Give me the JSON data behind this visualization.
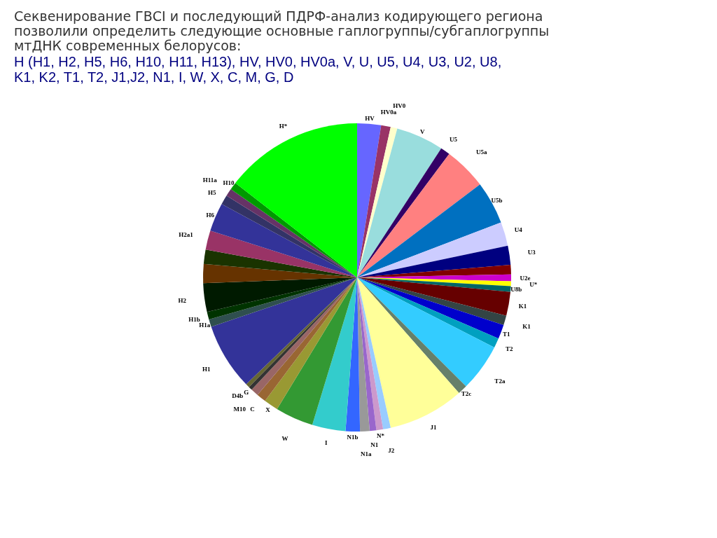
{
  "chart_data": {
    "type": "pie",
    "title": "Секвенирование ГВСI и последующий ПДРФ-анализ кодирующего региона позволили определить следующие основные гаплогруппы/субгаплогруппы мтДНК современных белорусов:",
    "subtitle": "H (H1, H2, H5, H6, H10, H11, H13), HV, HV0, HV0a, V, U, U5, U4, U3, U2, U8, K1, K2, T1, T2, J1,J2, N1, I, W, X, C, M, G, D",
    "categories": [
      "HV",
      "HV0a",
      "HV0",
      "V",
      "U5",
      "U5a",
      "U5b",
      "U4",
      "U3",
      null,
      "U2e",
      "U*",
      "U8b",
      "K1",
      "K1",
      "T1",
      "T2",
      "T2a",
      "T2c",
      "J1",
      "J2",
      "N*",
      "N1",
      "N1a",
      "N1b",
      "I",
      "W",
      "X",
      "C",
      "M10",
      "G",
      "D4b",
      "H1",
      "H1a",
      "H1b",
      "H2",
      null,
      null,
      "H2a1",
      "H6",
      "H5",
      "H11a",
      "H10",
      "H*"
    ],
    "values": [
      2.5,
      1,
      0.7,
      5,
      1,
      4.5,
      4.5,
      2.5,
      2,
      1,
      0.7,
      0.5,
      0.6,
      2.5,
      1,
      1.5,
      1,
      5,
      1,
      8,
      0.8,
      0.7,
      0.7,
      1,
      1.5,
      3.5,
      4,
      1.5,
      1,
      0.8,
      0.4,
      0.4,
      7,
      0.8,
      0.8,
      3,
      2,
      1.5,
      2,
      3,
      1,
      0.8,
      0.8,
      14.5
    ],
    "colors": [
      "#6666ff",
      "#993366",
      "#ffffcc",
      "#99dddd",
      "#330066",
      "#ff8080",
      "#0070c0",
      "#ccccff",
      "#000080",
      "#800000",
      "#cc00cc",
      "#ffff00",
      "#006666",
      "#660000",
      "#334444",
      "#0000cc",
      "#00a0c0",
      "#33ccff",
      "#66806a",
      "#ffff99",
      "#99ccff",
      "#cc99cc",
      "#9966cc",
      "#999999",
      "#3366ff",
      "#33cccc",
      "#339933",
      "#999933",
      "#996633",
      "#996666",
      "#333333",
      "#666633",
      "#333399",
      "#2f4f4f",
      "#003300",
      "#001a00",
      "#663300",
      "#1a3300",
      "#993366",
      "#333399",
      "#333366",
      "#663366",
      "#009900",
      "#00ff00"
    ]
  }
}
